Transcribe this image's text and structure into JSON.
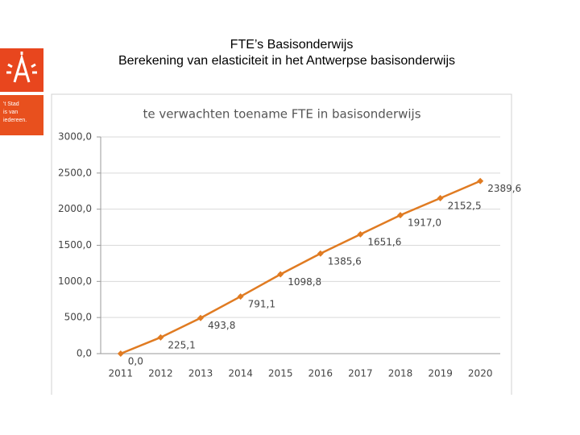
{
  "header": {
    "title": "FTE’s Basisonderwijs",
    "subtitle": "Berekening van elasticiteit in het Antwerpse basisonderwijs"
  },
  "logo": {
    "tagline": [
      "'t Stad",
      "is van",
      "iedereen."
    ]
  },
  "chart_data": {
    "type": "line",
    "title": "te verwachten toename FTE in basisonderwijs",
    "categories": [
      "2011",
      "2012",
      "2013",
      "2014",
      "2015",
      "2016",
      "2017",
      "2018",
      "2019",
      "2020"
    ],
    "values": [
      0.0,
      225.1,
      493.8,
      791.1,
      1098.8,
      1385.6,
      1651.6,
      1917.0,
      2152.5,
      2389.6
    ],
    "value_labels": [
      "0,0",
      "225,1",
      "493,8",
      "791,1",
      "1098,8",
      "1385,6",
      "1651,6",
      "1917,0",
      "2152,5",
      "2389,6"
    ],
    "color": "#e07b22",
    "ylim": [
      0,
      3000
    ],
    "yticks": [
      {
        "value": 0,
        "label": "0,0"
      },
      {
        "value": 500,
        "label": "500,0"
      },
      {
        "value": 1000,
        "label": "1000,0"
      },
      {
        "value": 1500,
        "label": "1500,0"
      },
      {
        "value": 2000,
        "label": "2000,0"
      },
      {
        "value": 2500,
        "label": "2500,0"
      },
      {
        "value": 3000,
        "label": "3000,0"
      }
    ],
    "grid": true
  }
}
